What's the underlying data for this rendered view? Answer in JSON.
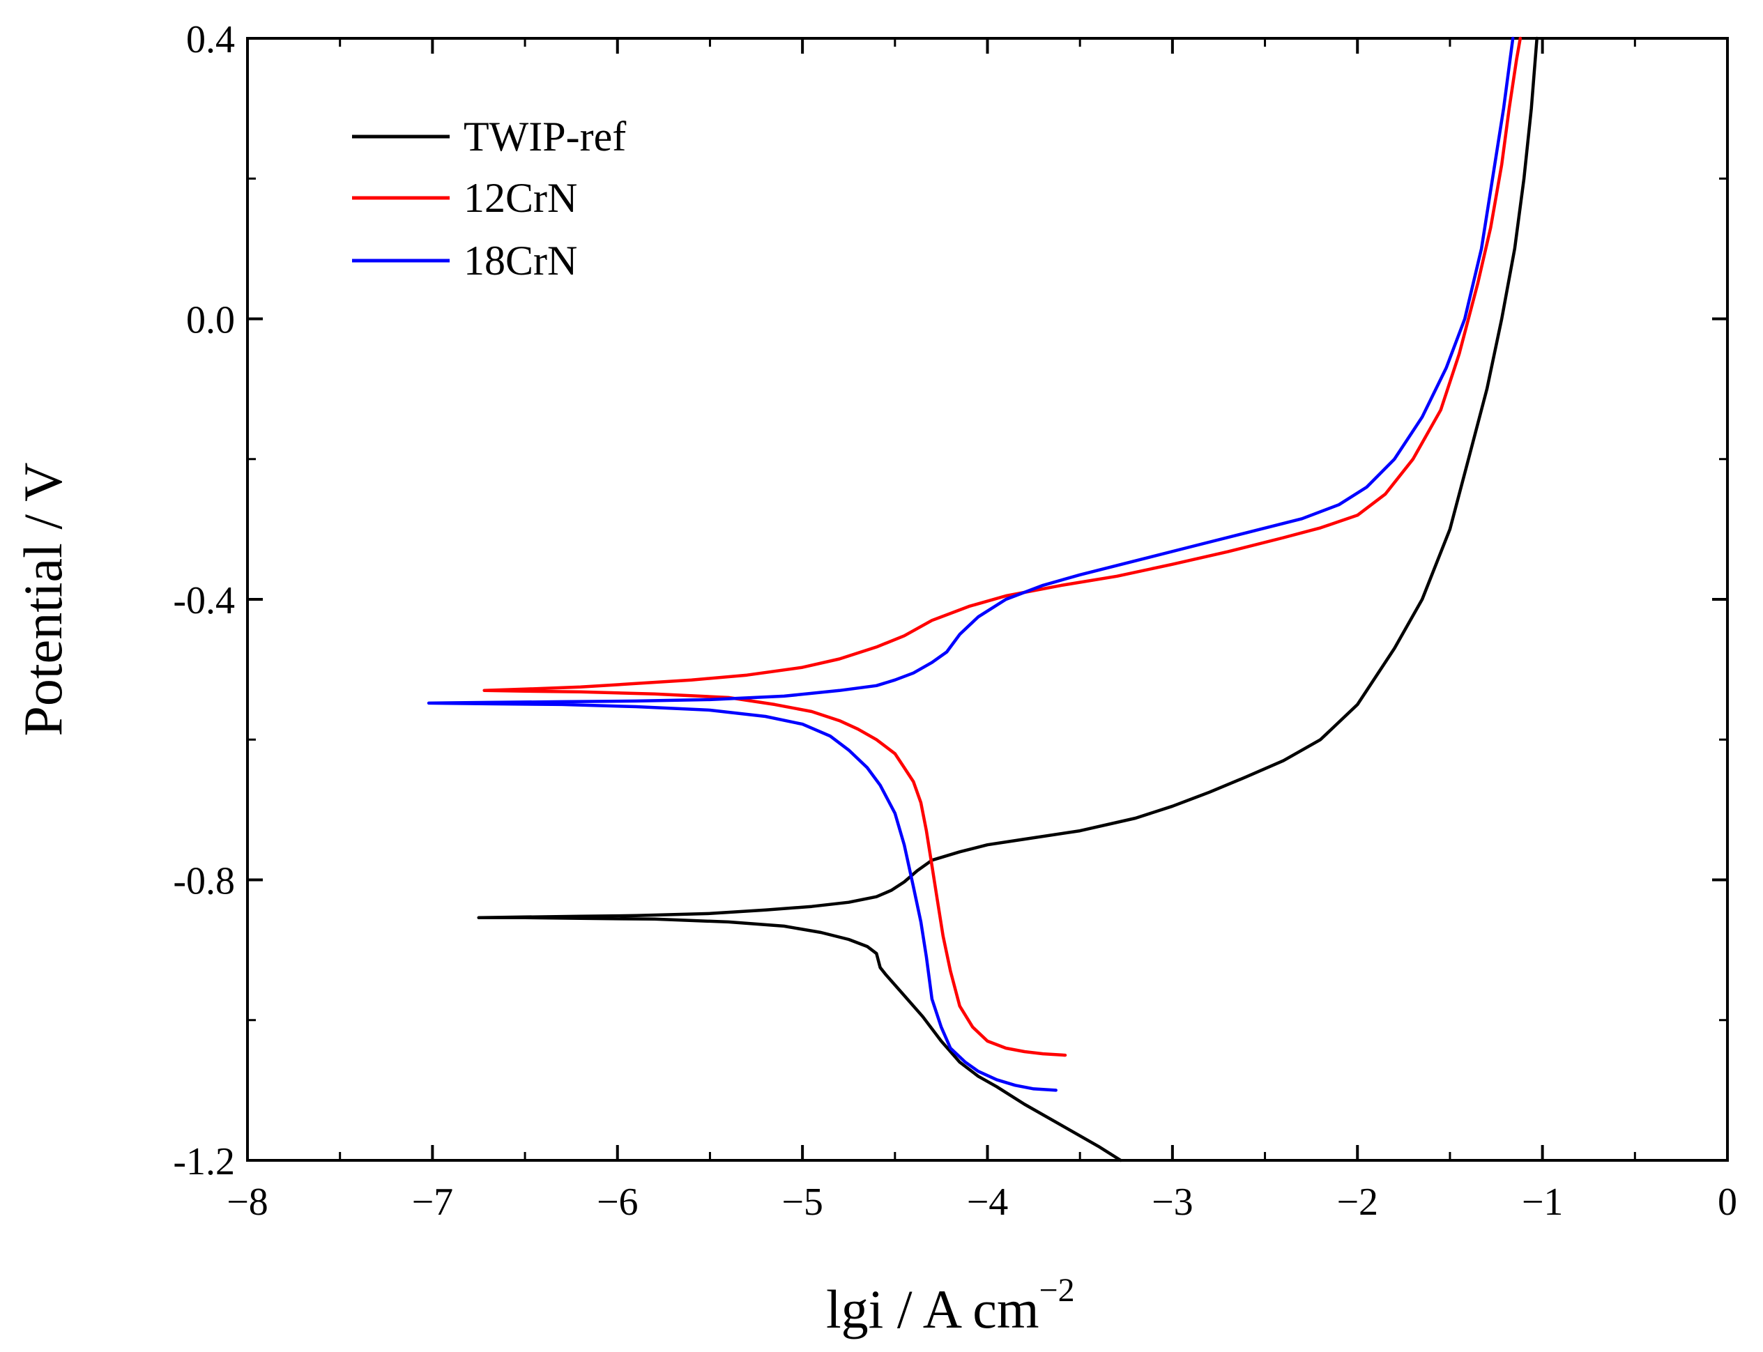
{
  "chart_data": {
    "type": "line",
    "title": "",
    "xlabel": "lgi / A cm",
    "xlabel_superscript": "−2",
    "ylabel": "Potential / V",
    "xlim": [
      -8,
      0
    ],
    "ylim": [
      -1.2,
      0.4
    ],
    "xticks": [
      -8,
      -7,
      -6,
      -5,
      -4,
      -3,
      -2,
      -1,
      0
    ],
    "xtick_labels": [
      "−8",
      "−7",
      "−6",
      "−5",
      "−4",
      "−3",
      "−2",
      "−1",
      "0"
    ],
    "yticks": [
      0.4,
      0.0,
      -0.4,
      -0.8,
      -1.2
    ],
    "ytick_labels": [
      "0.4",
      "0.0",
      "-0.4",
      "-0.8",
      "-1.2"
    ],
    "grid": false,
    "legend_position": "top-left",
    "series": [
      {
        "name": "TWIP-ref",
        "color": "#000000",
        "x": [
          -3.28,
          -3.4,
          -3.6,
          -3.8,
          -3.95,
          -4.05,
          -4.15,
          -4.25,
          -4.35,
          -4.45,
          -4.5,
          -4.55,
          -4.58,
          -4.6,
          -4.65,
          -4.75,
          -4.9,
          -5.1,
          -5.4,
          -5.8,
          -6.2,
          -6.5,
          -6.75,
          -6.5,
          -6.2,
          -5.9,
          -5.5,
          -5.2,
          -4.95,
          -4.75,
          -4.6,
          -4.52,
          -4.45,
          -4.38,
          -4.3,
          -4.15,
          -4.0,
          -3.8,
          -3.5,
          -3.2,
          -3.0,
          -2.8,
          -2.6,
          -2.4,
          -2.2,
          -2.0,
          -1.8,
          -1.65,
          -1.5,
          -1.4,
          -1.3,
          -1.22,
          -1.15,
          -1.1,
          -1.06,
          -1.03
        ],
        "y": [
          -1.2,
          -1.18,
          -1.15,
          -1.12,
          -1.095,
          -1.08,
          -1.06,
          -1.03,
          -0.995,
          -0.965,
          -0.95,
          -0.935,
          -0.925,
          -0.905,
          -0.895,
          -0.885,
          -0.875,
          -0.866,
          -0.86,
          -0.856,
          -0.855,
          -0.854,
          -0.854,
          -0.853,
          -0.852,
          -0.851,
          -0.848,
          -0.843,
          -0.838,
          -0.832,
          -0.824,
          -0.815,
          -0.803,
          -0.787,
          -0.772,
          -0.76,
          -0.75,
          -0.742,
          -0.73,
          -0.712,
          -0.695,
          -0.675,
          -0.653,
          -0.63,
          -0.6,
          -0.55,
          -0.47,
          -0.4,
          -0.3,
          -0.2,
          -0.1,
          0.0,
          0.1,
          0.2,
          0.3,
          0.4
        ]
      },
      {
        "name": "12CrN",
        "color": "#ff0000",
        "x": [
          -3.58,
          -3.7,
          -3.8,
          -3.9,
          -4.0,
          -4.08,
          -4.15,
          -4.2,
          -4.24,
          -4.27,
          -4.3,
          -4.33,
          -4.36,
          -4.4,
          -4.45,
          -4.5,
          -4.6,
          -4.7,
          -4.8,
          -4.95,
          -5.15,
          -5.4,
          -5.8,
          -6.2,
          -6.5,
          -6.72,
          -6.5,
          -6.2,
          -5.9,
          -5.6,
          -5.3,
          -5.0,
          -4.8,
          -4.6,
          -4.45,
          -4.3,
          -4.1,
          -3.9,
          -3.6,
          -3.3,
          -3.0,
          -2.7,
          -2.4,
          -2.2,
          -2.0,
          -1.85,
          -1.7,
          -1.55,
          -1.45,
          -1.35,
          -1.28,
          -1.22,
          -1.18,
          -1.14,
          -1.12
        ],
        "y": [
          -1.05,
          -1.048,
          -1.045,
          -1.04,
          -1.03,
          -1.01,
          -0.98,
          -0.93,
          -0.88,
          -0.83,
          -0.78,
          -0.73,
          -0.69,
          -0.66,
          -0.64,
          -0.62,
          -0.6,
          -0.585,
          -0.573,
          -0.56,
          -0.55,
          -0.54,
          -0.535,
          -0.532,
          -0.531,
          -0.53,
          -0.528,
          -0.525,
          -0.52,
          -0.515,
          -0.508,
          -0.497,
          -0.485,
          -0.468,
          -0.452,
          -0.43,
          -0.41,
          -0.395,
          -0.38,
          -0.367,
          -0.35,
          -0.332,
          -0.312,
          -0.298,
          -0.28,
          -0.25,
          -0.2,
          -0.13,
          -0.05,
          0.05,
          0.13,
          0.22,
          0.3,
          0.37,
          0.4
        ]
      },
      {
        "name": "18CrN",
        "color": "#0000ff",
        "x": [
          -3.63,
          -3.75,
          -3.85,
          -3.95,
          -4.05,
          -4.12,
          -4.2,
          -4.25,
          -4.3,
          -4.33,
          -4.36,
          -4.4,
          -4.45,
          -4.5,
          -4.58,
          -4.65,
          -4.75,
          -4.85,
          -5.0,
          -5.2,
          -5.5,
          -5.9,
          -6.3,
          -6.7,
          -7.02,
          -6.7,
          -6.3,
          -5.9,
          -5.5,
          -5.1,
          -4.8,
          -4.6,
          -4.5,
          -4.4,
          -4.3,
          -4.22,
          -4.15,
          -4.05,
          -3.9,
          -3.7,
          -3.5,
          -3.2,
          -2.9,
          -2.6,
          -2.3,
          -2.1,
          -1.95,
          -1.8,
          -1.65,
          -1.52,
          -1.42,
          -1.33,
          -1.27,
          -1.21,
          -1.16
        ],
        "y": [
          -1.1,
          -1.098,
          -1.093,
          -1.085,
          -1.073,
          -1.06,
          -1.04,
          -1.01,
          -0.97,
          -0.91,
          -0.86,
          -0.81,
          -0.75,
          -0.705,
          -0.665,
          -0.64,
          -0.615,
          -0.595,
          -0.578,
          -0.567,
          -0.558,
          -0.553,
          -0.55,
          -0.549,
          -0.548,
          -0.547,
          -0.546,
          -0.545,
          -0.543,
          -0.538,
          -0.53,
          -0.523,
          -0.515,
          -0.505,
          -0.49,
          -0.475,
          -0.45,
          -0.425,
          -0.4,
          -0.38,
          -0.365,
          -0.345,
          -0.325,
          -0.305,
          -0.285,
          -0.265,
          -0.24,
          -0.2,
          -0.14,
          -0.07,
          0.0,
          0.1,
          0.2,
          0.3,
          0.4
        ]
      }
    ]
  }
}
